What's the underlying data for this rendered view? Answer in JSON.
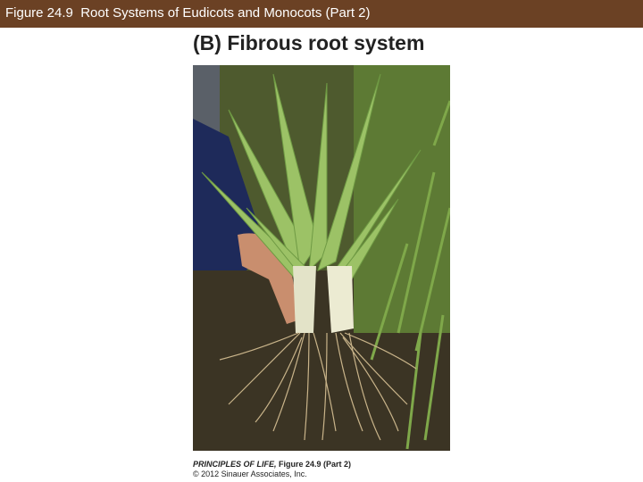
{
  "header": {
    "title": "Figure 24.9  Root Systems of Eudicots and Monocots (Part 2)"
  },
  "figure": {
    "panel_title": "(B) Fibrous root system",
    "credit": {
      "source_italic": "PRINCIPLES OF LIFE,",
      "source_rest": "Figure 24.9 (Part 2)",
      "copyright": "© 2012 Sinauer Associates, Inc."
    }
  }
}
